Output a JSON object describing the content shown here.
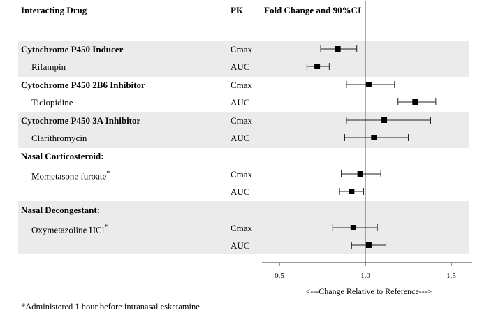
{
  "headers": {
    "drug": "Interacting Drug",
    "pk": "PK",
    "effect": "Fold Change and 90%CI"
  },
  "rows": [
    {
      "group": "Cytochrome P450 Inducer",
      "drug": "",
      "pk": "Cmax"
    },
    {
      "group": "",
      "drug": "Rifampin",
      "pk": "AUC"
    },
    {
      "group": "Cytochrome P450 2B6 Inhibitor",
      "drug": "",
      "pk": "Cmax"
    },
    {
      "group": "",
      "drug": "Ticlopidine",
      "pk": "AUC"
    },
    {
      "group": "Cytochrome P450 3A Inhibitor",
      "drug": "",
      "pk": "Cmax"
    },
    {
      "group": "",
      "drug": "Clarithromycin",
      "pk": "AUC"
    },
    {
      "group": "Nasal Corticosteroid:",
      "drug": "",
      "pk": ""
    },
    {
      "group": "",
      "drug": "Mometasone furoate",
      "pk": "Cmax"
    },
    {
      "group": "",
      "drug": "",
      "pk": "AUC"
    },
    {
      "group": "Nasal Decongestant:",
      "drug": "",
      "pk": ""
    },
    {
      "group": "",
      "drug": "Oxymetazoline HCl",
      "pk": "Cmax"
    },
    {
      "group": "",
      "drug": "",
      "pk": "AUC"
    }
  ],
  "asterisk": "*",
  "chart_data": {
    "type": "scatter",
    "subtype": "forest-plot",
    "xlabel": "<---Change Relative to Reference--->",
    "xlim": [
      0.42,
      1.55
    ],
    "xticks": [
      0.5,
      1.0,
      1.5
    ],
    "xtick_labels": [
      "0.5",
      "1.0",
      "1.5"
    ],
    "reference_line": 1.0,
    "points": [
      {
        "label": "Cytochrome P450 Inducer / Cmax",
        "estimate": 0.84,
        "lower": 0.74,
        "upper": 0.95
      },
      {
        "label": "Rifampin / AUC",
        "estimate": 0.72,
        "lower": 0.66,
        "upper": 0.79
      },
      {
        "label": "Cytochrome P450 2B6 Inhibitor / Cmax",
        "estimate": 1.02,
        "lower": 0.89,
        "upper": 1.17
      },
      {
        "label": "Ticlopidine / AUC",
        "estimate": 1.29,
        "lower": 1.19,
        "upper": 1.41
      },
      {
        "label": "Cytochrome P450 3A Inhibitor / Cmax",
        "estimate": 1.11,
        "lower": 0.89,
        "upper": 1.38
      },
      {
        "label": "Clarithromycin / AUC",
        "estimate": 1.05,
        "lower": 0.88,
        "upper": 1.25
      },
      {
        "label": "Mometasone furoate / Cmax",
        "estimate": 0.97,
        "lower": 0.86,
        "upper": 1.09
      },
      {
        "label": "Mometasone furoate / AUC",
        "estimate": 0.92,
        "lower": 0.85,
        "upper": 0.99
      },
      {
        "label": "Oxymetazoline HCl / Cmax",
        "estimate": 0.93,
        "lower": 0.81,
        "upper": 1.07
      },
      {
        "label": "Oxymetazoline HCl / AUC",
        "estimate": 1.02,
        "lower": 0.92,
        "upper": 1.12
      }
    ]
  },
  "footnote": "*Administered 1 hour before intranasal esketamine"
}
